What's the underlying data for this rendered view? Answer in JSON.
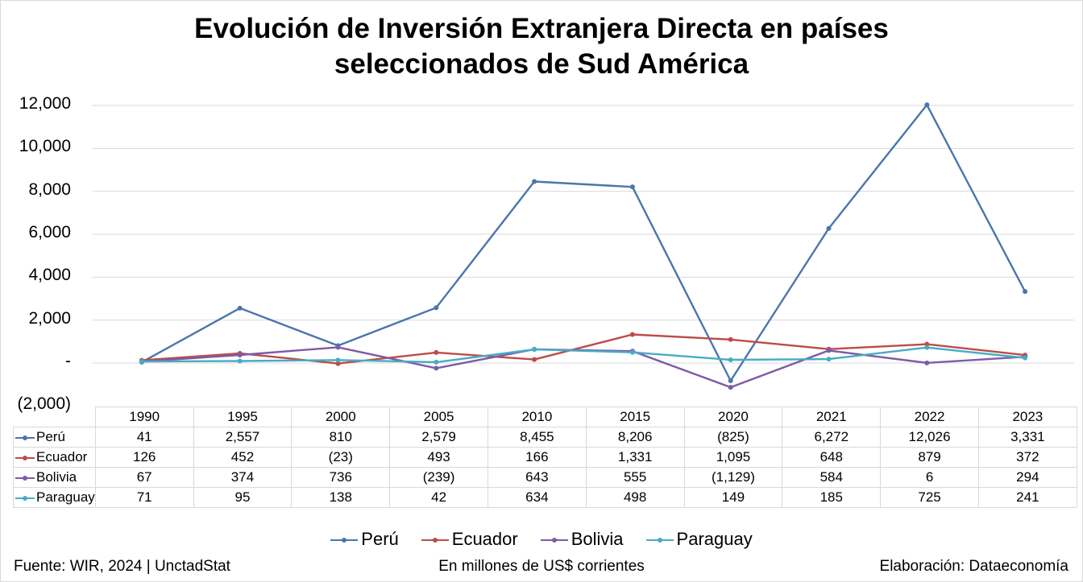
{
  "colors": {
    "Perú": "#4a76ad",
    "Ecuador": "#bd4b47",
    "Bolivia": "#7d5ba6",
    "Paraguay": "#47acc5",
    "grid": "#d9d9d9"
  },
  "chart_data": {
    "type": "line",
    "title_lines": [
      "Evolución de Inversión Extranjera Directa en países",
      "seleccionados de Sud América"
    ],
    "categories": [
      "1990",
      "1995",
      "2000",
      "2005",
      "2010",
      "2015",
      "2020",
      "2021",
      "2022",
      "2023"
    ],
    "ylim": [
      -2000,
      12000
    ],
    "yticks": [
      12000,
      10000,
      8000,
      6000,
      4000,
      2000,
      0,
      -2000
    ],
    "ytick_labels": [
      "12,000",
      "10,000",
      "8,000",
      "6,000",
      "4,000",
      "2,000",
      "-",
      "(2,000)"
    ],
    "grid": true,
    "legend_position": "bottom",
    "series": [
      {
        "name": "Perú",
        "values": [
          41,
          2557,
          810,
          2579,
          8455,
          8206,
          -825,
          6272,
          12026,
          3331
        ],
        "labels": [
          "41",
          "2,557",
          "810",
          "2,579",
          "8,455",
          "8,206",
          "(825)",
          "6,272",
          "12,026",
          "3,331"
        ]
      },
      {
        "name": "Ecuador",
        "values": [
          126,
          452,
          -23,
          493,
          166,
          1331,
          1095,
          648,
          879,
          372
        ],
        "labels": [
          "126",
          "452",
          "(23)",
          "493",
          "166",
          "1,331",
          "1,095",
          "648",
          "879",
          "372"
        ]
      },
      {
        "name": "Bolivia",
        "values": [
          67,
          374,
          736,
          -239,
          643,
          555,
          -1129,
          584,
          6,
          294
        ],
        "labels": [
          "67",
          "374",
          "736",
          "(239)",
          "643",
          "555",
          "(1,129)",
          "584",
          "6",
          "294"
        ]
      },
      {
        "name": "Paraguay",
        "values": [
          71,
          95,
          138,
          42,
          634,
          498,
          149,
          185,
          725,
          241
        ],
        "labels": [
          "71",
          "95",
          "138",
          "42",
          "634",
          "498",
          "149",
          "185",
          "725",
          "241"
        ]
      }
    ]
  },
  "footer": {
    "source": "Fuente: WIR, 2024 | UnctadStat",
    "units": "En millones de US$ corrientes",
    "credit": "Elaboración: Dataeconomía"
  }
}
